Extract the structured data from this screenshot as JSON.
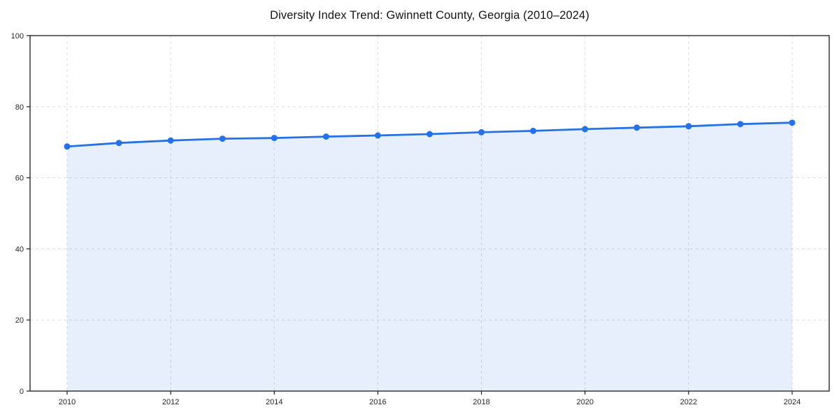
{
  "chart_data": {
    "type": "area",
    "title": "Diversity Index Trend: Gwinnett County, Georgia (2010–2024)",
    "x": [
      2010,
      2011,
      2012,
      2013,
      2014,
      2015,
      2016,
      2017,
      2018,
      2019,
      2020,
      2021,
      2022,
      2023,
      2024
    ],
    "series": [
      {
        "name": "Diversity Index",
        "values": [
          68.8,
          69.8,
          70.5,
          71.0,
          71.2,
          71.6,
          71.9,
          72.3,
          72.8,
          73.2,
          73.7,
          74.1,
          74.5,
          75.1,
          75.5
        ]
      }
    ],
    "xlabel": "",
    "ylabel": "",
    "xticks": [
      2010,
      2012,
      2014,
      2016,
      2018,
      2020,
      2022,
      2024
    ],
    "yticks": [
      0,
      20,
      40,
      60,
      80,
      100
    ],
    "ylim": [
      0,
      100
    ],
    "grid": true,
    "legend": false,
    "marker": "circle",
    "colors": {
      "line": "#2471e8",
      "marker": "#2471e8",
      "fill": "rgba(36, 113, 232, 0.11)",
      "grid": "#dcdcdc",
      "axis": "#1a1a1a",
      "tick_text": "#262626",
      "background": "#ffffff"
    }
  }
}
